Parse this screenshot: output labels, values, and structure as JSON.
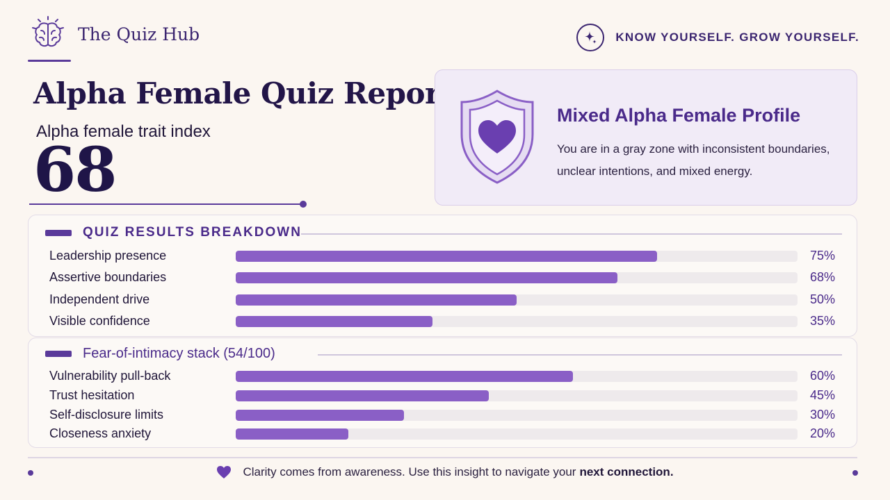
{
  "header": {
    "brand_icon": "brain-icon",
    "brand_name": "The Quiz Hub",
    "tagline_icon": "sparkle-icon",
    "tagline": "KNOW YOURSELF. GROW YOURSELF."
  },
  "report": {
    "title": "Alpha Female Quiz Report",
    "index_label": "Alpha female trait index",
    "index_value": "68"
  },
  "profile": {
    "icon": "shield-heart-icon",
    "title": "Mixed Alpha Female Profile",
    "description": "You are in a gray zone with inconsistent boundaries, unclear intentions, and mixed energy."
  },
  "breakdown": {
    "title": "QUIZ RESULTS BREAKDOWN",
    "rows": [
      {
        "label": "Leadership presence",
        "value": 75,
        "pct": "75%"
      },
      {
        "label": "Assertive boundaries",
        "value": 68,
        "pct": "68%"
      },
      {
        "label": "Independent drive",
        "value": 50,
        "pct": "50%"
      },
      {
        "label": "Visible confidence",
        "value": 35,
        "pct": "35%"
      }
    ]
  },
  "intimacy": {
    "title": "Fear-of-intimacy stack (54/100)",
    "rows": [
      {
        "label": "Vulnerability pull-back",
        "value": 60,
        "pct": "60%"
      },
      {
        "label": "Trust hesitation",
        "value": 45,
        "pct": "45%"
      },
      {
        "label": "Self-disclosure limits",
        "value": 30,
        "pct": "30%"
      },
      {
        "label": "Closeness anxiety",
        "value": 20,
        "pct": "20%"
      }
    ]
  },
  "footer": {
    "icon": "heart-icon",
    "text": "Clarity comes from awareness. Use this insight to navigate your",
    "emphasis": "next connection."
  },
  "colors": {
    "accent": "#5a3a9a",
    "bar_fill": "#8a5fc6",
    "track": "#eeeaec",
    "background": "#fbf6f1"
  }
}
